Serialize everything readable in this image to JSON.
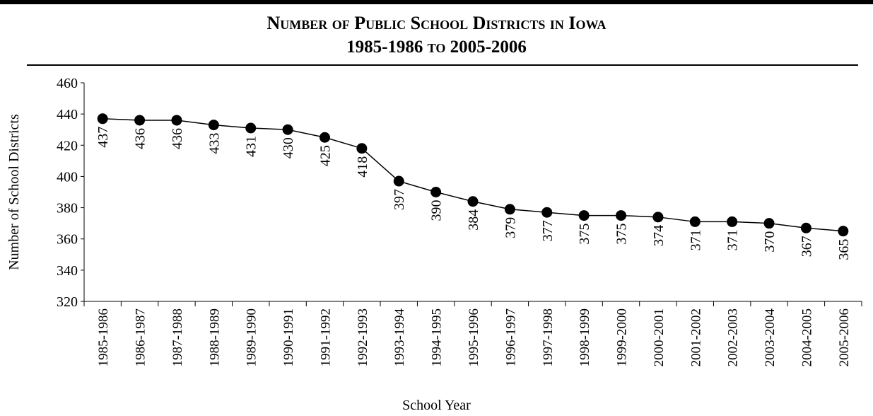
{
  "header": {
    "title_line1": "Number of Public School Districts in Iowa",
    "title_line2": "1985-1986 to 2005-2006"
  },
  "chart_data": {
    "type": "line",
    "title": "Number of Public School Districts in Iowa 1985-1986 to 2005-2006",
    "xlabel": "School Year",
    "ylabel": "Number of School Districts",
    "ylim": [
      320,
      460
    ],
    "yticks": [
      320,
      340,
      360,
      380,
      400,
      420,
      440,
      460
    ],
    "grid": false,
    "categories": [
      "1985-1986",
      "1986-1987",
      "1987-1988",
      "1988-1989",
      "1989-1990",
      "1990-1991",
      "1991-1992",
      "1992-1993",
      "1993-1994",
      "1994-1995",
      "1995-1996",
      "1996-1997",
      "1997-1998",
      "1998-1999",
      "1999-2000",
      "2000-2001",
      "2001-2002",
      "2002-2003",
      "2003-2004",
      "2004-2005",
      "2005-2006"
    ],
    "series": [
      {
        "values": [
          437,
          436,
          436,
          433,
          431,
          430,
          425,
          418,
          397,
          390,
          384,
          379,
          377,
          375,
          375,
          374,
          371,
          371,
          370,
          367,
          365
        ]
      }
    ],
    "line_color": "#000000",
    "marker_color": "#000000"
  }
}
